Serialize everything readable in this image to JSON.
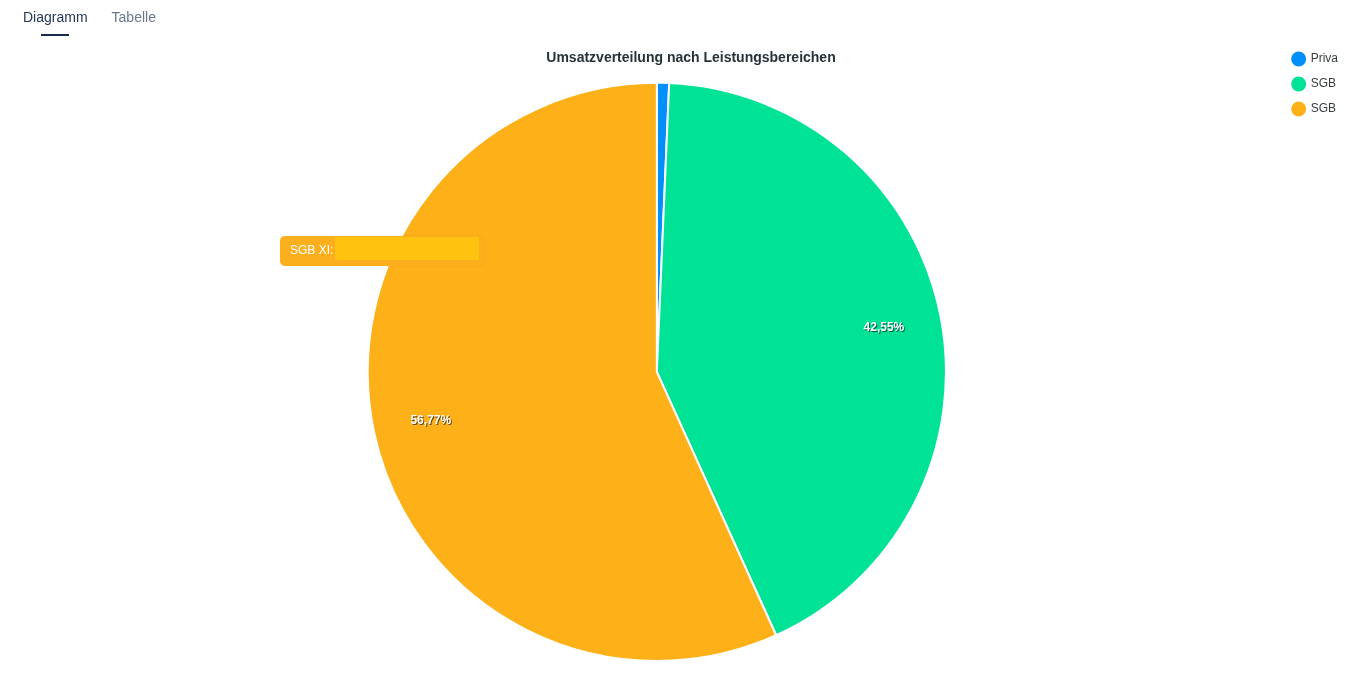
{
  "chart_data": {
    "type": "pie",
    "title": "Umsatzverteilung nach Leistungsbereichen",
    "categories": [
      "Priva",
      "SGB",
      "SGB"
    ],
    "values": [
      0.68,
      42.55,
      56.77
    ],
    "colors": [
      "#008ffb",
      "#00e396",
      "#feb019"
    ],
    "value_labels": [
      null,
      "42,55%",
      "56,77%"
    ],
    "legend": "top right",
    "annotations": [
      "Diagramm",
      "Tabelle",
      "SGB XI:"
    ]
  }
}
